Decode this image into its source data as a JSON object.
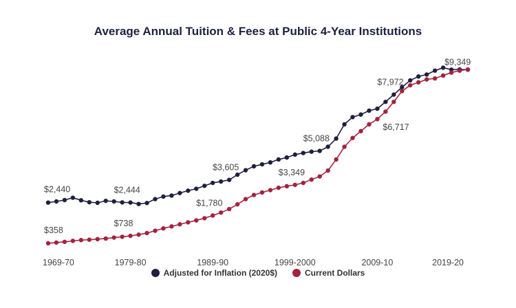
{
  "chart_data": {
    "type": "line",
    "title": "Average Annual Tuition & Fees at Public 4-Year Institutions",
    "x_tick_labels": [
      "1969-70",
      "1979-80",
      "1989-90",
      "1999-2000",
      "2009-10",
      "2019-20"
    ],
    "ylim": [
      0,
      10000
    ],
    "grid": false,
    "legend_position": "bottom",
    "series": [
      {
        "name": "Adjusted for Inflation (2020$)",
        "color": "#1f1f40",
        "values": [
          2440,
          2500,
          2570,
          2690,
          2560,
          2460,
          2430,
          2530,
          2500,
          2450,
          2444,
          2370,
          2420,
          2620,
          2750,
          2800,
          2930,
          3050,
          3150,
          3300,
          3450,
          3520,
          3605,
          3870,
          4100,
          4300,
          4400,
          4500,
          4650,
          4750,
          4900,
          4980,
          5050,
          5088,
          5300,
          5720,
          6450,
          6820,
          6950,
          7150,
          7250,
          7600,
          7972,
          8350,
          8700,
          8900,
          9000,
          9200,
          9349,
          9250,
          9260,
          9250
        ]
      },
      {
        "name": "Current Dollars",
        "color": "#a3233f",
        "values": [
          358,
          395,
          430,
          480,
          520,
          540,
          570,
          600,
          650,
          690,
          738,
          800,
          880,
          1000,
          1120,
          1220,
          1330,
          1430,
          1530,
          1640,
          1780,
          1930,
          2110,
          2350,
          2620,
          2830,
          2960,
          3080,
          3200,
          3280,
          3349,
          3450,
          3620,
          3780,
          4080,
          4650,
          5300,
          5750,
          6100,
          6450,
          6717,
          7100,
          7600,
          8150,
          8450,
          8600,
          8750,
          8800,
          8950,
          9100,
          9200,
          9260
        ]
      }
    ],
    "data_labels": [
      {
        "series": 0,
        "index": 0,
        "text": "$2,440"
      },
      {
        "series": 0,
        "index": 10,
        "text": "$2,444"
      },
      {
        "series": 0,
        "index": 22,
        "text": "$3,605"
      },
      {
        "series": 0,
        "index": 33,
        "text": "$5,088"
      },
      {
        "series": 0,
        "index": 42,
        "text": "$7,972"
      },
      {
        "series": 0,
        "index": 48,
        "text": "$9,349"
      },
      {
        "series": 1,
        "index": 0,
        "text": "$358"
      },
      {
        "series": 1,
        "index": 10,
        "text": "$738"
      },
      {
        "series": 1,
        "index": 20,
        "text": "$1,780"
      },
      {
        "series": 1,
        "index": 30,
        "text": "$3,349"
      },
      {
        "series": 1,
        "index": 40,
        "text": "$6,717"
      }
    ]
  },
  "legend": {
    "items": [
      {
        "label": "Adjusted for Inflation (2020$)",
        "color": "#1f1f40"
      },
      {
        "label": "Current Dollars",
        "color": "#a3233f"
      }
    ]
  }
}
